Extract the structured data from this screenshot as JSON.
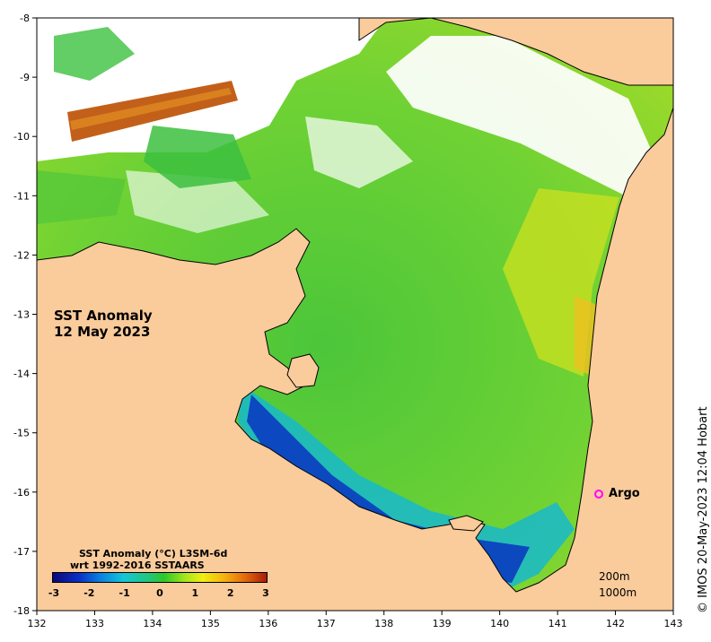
{
  "map": {
    "title_line1": "SST Anomaly",
    "title_line2": "12 May 2023",
    "x_ticks": [
      "132",
      "133",
      "134",
      "135",
      "136",
      "137",
      "138",
      "139",
      "140",
      "141",
      "142",
      "143"
    ],
    "y_ticks": [
      "-8",
      "-9",
      "-10",
      "-11",
      "-12",
      "-13",
      "-14",
      "-15",
      "-16",
      "-17",
      "-18"
    ],
    "lon_range": [
      132,
      143
    ],
    "lat_range": [
      -18,
      -8
    ],
    "colors": {
      "land": "#FACB9B",
      "cloud": "#FFFFFF",
      "coastline": "#000000",
      "colorbar": [
        "#0a0a7a",
        "#0b2fc6",
        "#0b7fe0",
        "#14c6d8",
        "#22c67a",
        "#2ec82a",
        "#a6e61c",
        "#f0ee12",
        "#f4b410",
        "#e36a0c",
        "#a81c06"
      ]
    }
  },
  "colorbar": {
    "title_line1": "SST Anomaly (°C) L3SM-6d",
    "title_line2": "wrt 1992-2016 SSTAARS",
    "ticks": [
      "-3",
      "-2",
      "-1",
      "0",
      "1",
      "2",
      "3"
    ],
    "range": [
      -3,
      3
    ]
  },
  "legend": {
    "depth_1": "200m",
    "depth_2": "1000m"
  },
  "argo": {
    "label": "Argo",
    "lon": 141.7,
    "lat": -16.0,
    "color": "#ff00ff"
  },
  "credit": "© IMOS 20-May-2023 12:04 Hobart"
}
